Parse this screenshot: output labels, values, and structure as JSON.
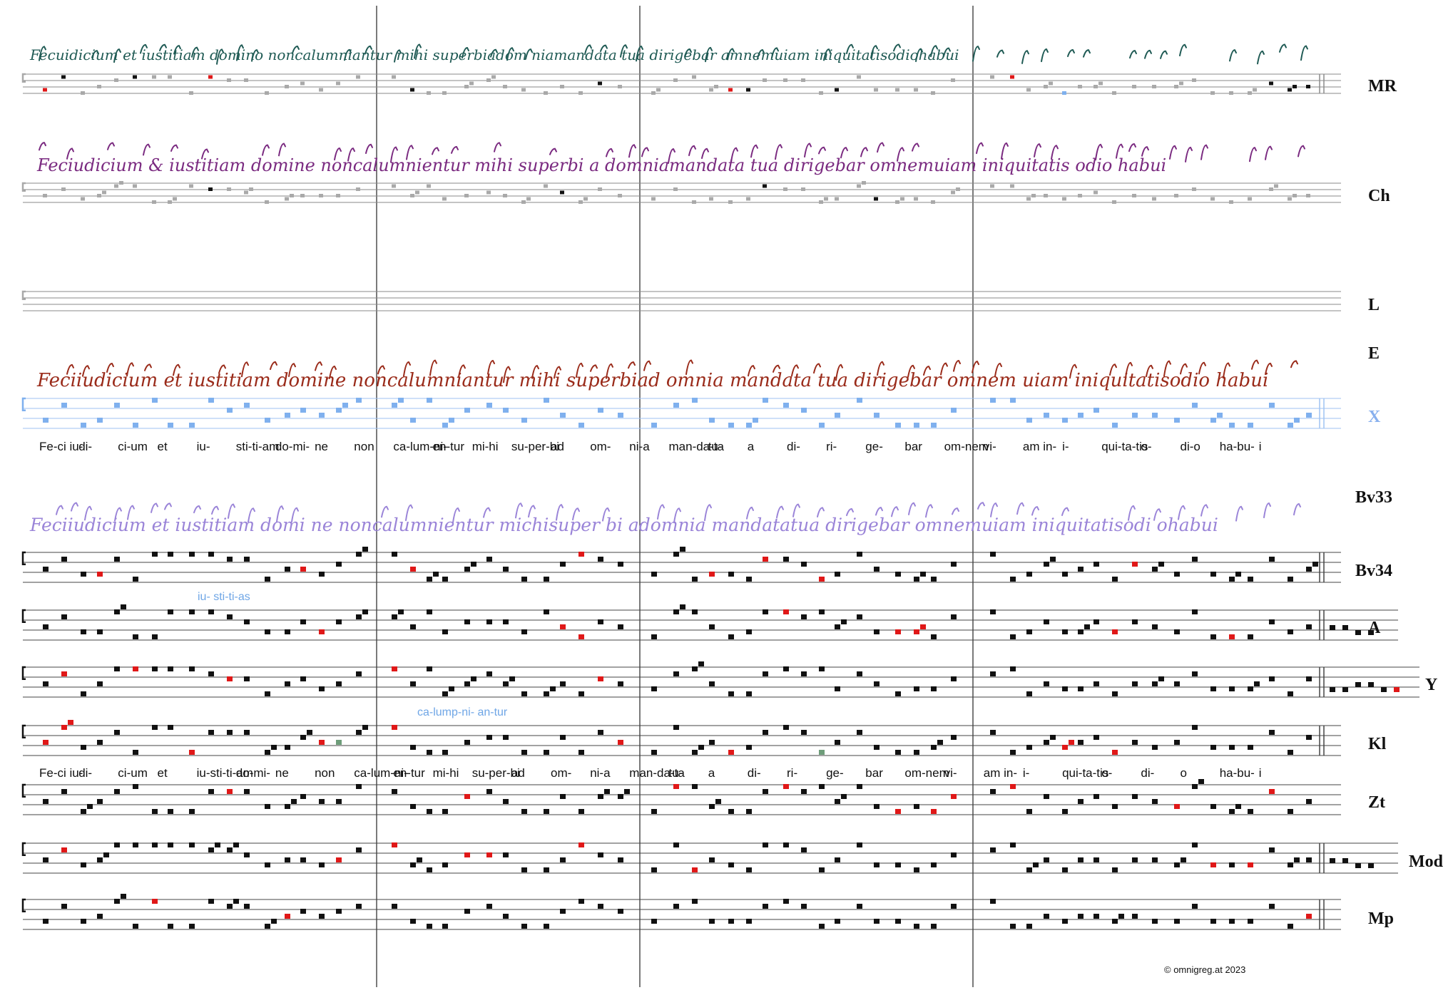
{
  "colors": {
    "black": "#111111",
    "grey": "#a9a9a9",
    "red": "#e01818",
    "blue": "#7fb0ee",
    "green": "#6e9d7a",
    "staff": "#8a8a8a",
    "staffBlue": "#9fc2f2",
    "MR_ink": "#1f5a54",
    "Ch_ink": "#7a2a80",
    "E_ink": "#9a2b1a",
    "Bv33_ink": "#9a84d8"
  },
  "rows": [
    {
      "label": "MR",
      "style": "mixed"
    },
    {
      "label": "Ch",
      "style": "mixed"
    },
    {
      "label": "L",
      "style": "empty"
    },
    {
      "label": "E",
      "style": "label"
    },
    {
      "label": "X",
      "style": "blue"
    },
    {
      "label": "Bv33",
      "style": "label"
    },
    {
      "label": "Bv34",
      "style": "black"
    },
    {
      "label": "A",
      "style": "black"
    },
    {
      "label": "Y",
      "style": "black"
    },
    {
      "label": "Kl",
      "style": "black"
    },
    {
      "label": "Zt",
      "style": "black"
    },
    {
      "label": "Mod",
      "style": "black"
    },
    {
      "label": "Mp",
      "style": "black"
    }
  ],
  "manuscripts": {
    "MR": "Fecuidicium   et iustitiam domino        noncalumniantur mihi superbiadom   niamandata tua dirigebar     amnemuiam iniquitatisodiohabui",
    "Ch": "Feciudicium    & iustitiam domine         noncalumnientur mihi superbi a domniamandata tua  dirigebar      omnemuiam iniquitatis odio habui",
    "E": "Feciiudicium et iustitiam domine  noncalumniantur mihi superbiad  omnia mandata tua  dirigebar omnem uiam iniquitatisodio habui",
    "Bv33": "Feciiudicium et iustitiam    domi ne noncalumnientur michisuper bi adomnia    mandatatua dirigebar    omnemuiam iniquitatisodi  ohabui"
  },
  "lyrics_upper": [
    "Fe-ci iu-",
    "di-",
    "ci-um",
    "et",
    "iu-",
    "sti-ti-am",
    "do-mi-",
    "ne",
    "non",
    "ca-lum-ni-",
    "en-tur",
    "mi-hi",
    "su-per-bi",
    "ad",
    "om-",
    "ni-a",
    "man-da-ta",
    "tu-",
    "a",
    "di-",
    "ri-",
    "ge-",
    "bar",
    "om-nem",
    "vi-",
    "am in-",
    "i-",
    "qui-ta-tis",
    "o-",
    "di-o",
    "ha-bu-",
    "i"
  ],
  "lyrics_lower": [
    "Fe-ci iu-",
    "di-",
    "ci-um",
    "et",
    "iu-sti-ti-am",
    "do-mi-",
    "ne",
    "non",
    "ca-lum-ni-",
    "en-tur",
    "mi-hi",
    "su-per-bi",
    "ad",
    "om-",
    "ni-a",
    "man-da-ta",
    "tu-",
    "a",
    "di-",
    "ri-",
    "ge-",
    "bar",
    "om-nem",
    "vi-",
    "am in-",
    "i-",
    "qui-ta-tis",
    "o-",
    "di-",
    "o",
    "ha-bu-",
    "i"
  ],
  "variants": {
    "bv34": "iu- sti-ti-as",
    "y": "ca-lump-ni- an-tur"
  },
  "copyright": "©  omnigreg.at    2023"
}
